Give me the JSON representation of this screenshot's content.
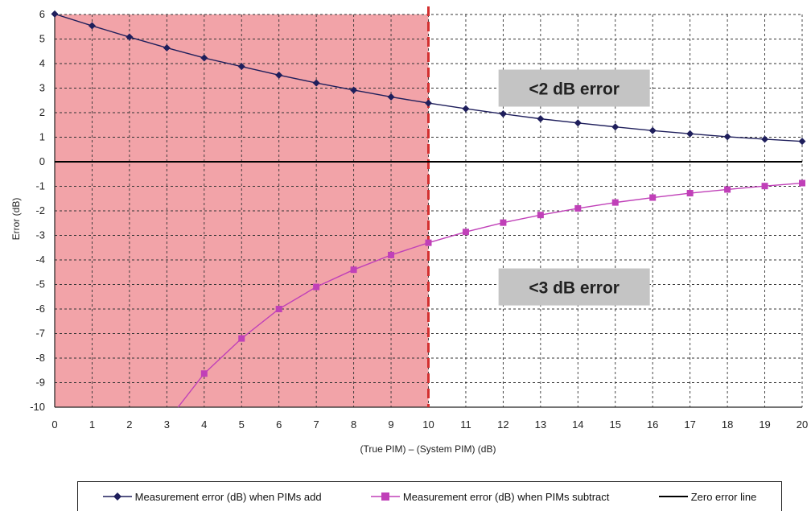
{
  "chart_data": {
    "type": "line",
    "xlabel": "(True PIM) – (System PIM)  (dB)",
    "ylabel": "Error  (dB)",
    "xlim": [
      0,
      20
    ],
    "ylim": [
      -10,
      6
    ],
    "x_ticks": [
      "0",
      "1",
      "2",
      "3",
      "4",
      "5",
      "6",
      "7",
      "8",
      "9",
      "10",
      "11",
      "12",
      "13",
      "14",
      "15",
      "16",
      "17",
      "18",
      "19",
      "20"
    ],
    "y_ticks": [
      "6",
      "5",
      "4",
      "3",
      "2",
      "1",
      "0",
      "-1",
      "-2",
      "-3",
      "-4",
      "-5",
      "-6",
      "-7",
      "-8",
      "-9",
      "-10"
    ],
    "grid": true,
    "shaded_region": {
      "x_from": 0,
      "x_to": 10,
      "color": "#f2a3a8"
    },
    "vertical_line": {
      "x": 10,
      "color": "#d32f2f",
      "style": "dashed"
    },
    "zero_line": {
      "y": 0,
      "color": "#000000"
    },
    "series": [
      {
        "name": "Measurement error (dB) when PIMs add",
        "color": "#1f1f5c",
        "marker": "diamond",
        "x": [
          0,
          1,
          2,
          3,
          4,
          5,
          6,
          7,
          8,
          9,
          10,
          11,
          12,
          13,
          14,
          15,
          16,
          17,
          18,
          19,
          20
        ],
        "values": [
          6.02,
          5.54,
          5.08,
          4.64,
          4.23,
          3.88,
          3.53,
          3.21,
          2.92,
          2.64,
          2.39,
          2.16,
          1.95,
          1.75,
          1.58,
          1.42,
          1.27,
          1.14,
          1.02,
          0.92,
          0.83
        ]
      },
      {
        "name": "Measurement error (dB) when PIMs subtract",
        "color": "#c040b8",
        "marker": "square",
        "x": [
          3.3,
          4,
          5,
          6,
          7,
          8,
          9,
          10,
          11,
          12,
          13,
          14,
          15,
          16,
          17,
          18,
          19,
          20
        ],
        "values": [
          -10,
          -8.63,
          -7.2,
          -6.0,
          -5.1,
          -4.4,
          -3.8,
          -3.3,
          -2.86,
          -2.48,
          -2.17,
          -1.9,
          -1.66,
          -1.46,
          -1.28,
          -1.13,
          -0.99,
          -0.87
        ],
        "marker_from_x": 4
      },
      {
        "name": "Zero error line",
        "color": "#000000",
        "marker": "none",
        "x": [
          0,
          20
        ],
        "values": [
          0,
          0
        ]
      }
    ],
    "annotations": [
      {
        "text": "<2 dB error",
        "x": 13.9,
        "y": 3.0
      },
      {
        "text": "<3 dB error",
        "x": 13.9,
        "y": -5.1
      }
    ],
    "legend_position": "bottom"
  }
}
